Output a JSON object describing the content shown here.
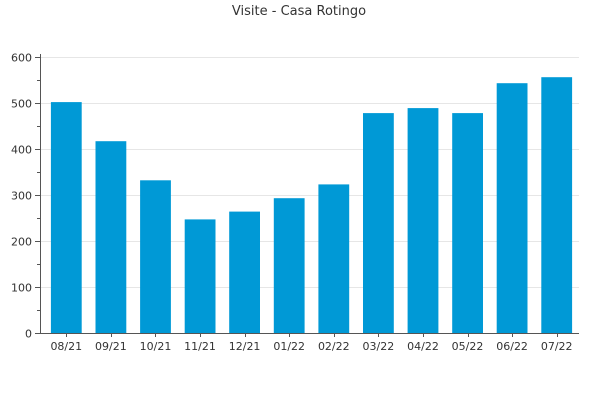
{
  "colors": {
    "bar": "#0099d6",
    "grid": "#e6e6e6",
    "axis": "#555555",
    "text": "#333333"
  },
  "chart_data": {
    "type": "bar",
    "title": "Visite - Casa Rotingo",
    "xlabel": "",
    "ylabel": "",
    "categories": [
      "08/21",
      "09/21",
      "10/21",
      "11/21",
      "12/21",
      "01/22",
      "02/22",
      "03/22",
      "04/22",
      "05/22",
      "06/22",
      "07/22"
    ],
    "values": [
      502,
      417,
      332,
      247,
      264,
      293,
      323,
      478,
      489,
      478,
      543,
      556
    ],
    "ylim": [
      0,
      600
    ],
    "yticks": [
      0,
      100,
      200,
      300,
      400,
      500,
      600
    ],
    "grid": true,
    "legend": "none"
  }
}
